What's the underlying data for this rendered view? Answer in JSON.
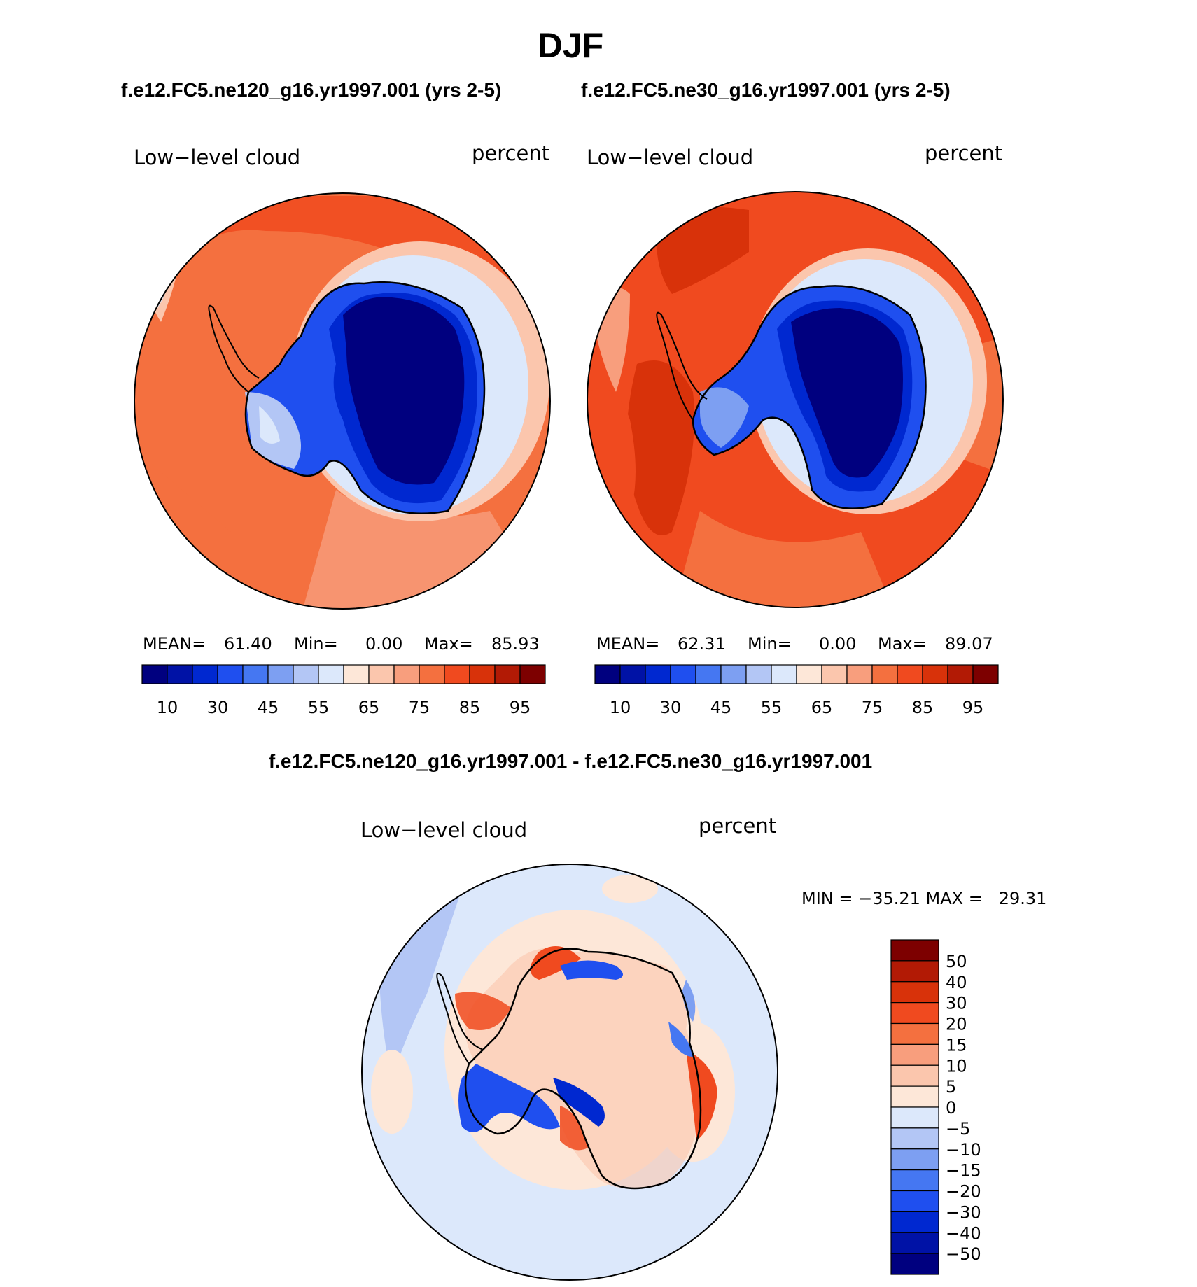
{
  "chart_data": {
    "type": "heatmap",
    "title": "DJF",
    "panels": [
      {
        "case_title": "f.e12.FC5.ne120_g16.yr1997.001 (yrs 2-5)",
        "variable": "Low−level cloud",
        "units": "percent",
        "mean_label": "MEAN=",
        "mean": "61.40",
        "min_label": "Min=",
        "min": "0.00",
        "max_label": "Max=",
        "max": "85.93",
        "colorbar_colors": [
          "#00007f",
          "#0012a6",
          "#0028d0",
          "#1f4fef",
          "#4577f2",
          "#7d9ff2",
          "#b3c6f5",
          "#dce8fb",
          "#fde7d8",
          "#fbc6ad",
          "#f89e7d",
          "#f4703f",
          "#f04a1f",
          "#d8320a",
          "#b21a05",
          "#7d0000"
        ],
        "colorbar_ticks": [
          "10",
          "30",
          "45",
          "55",
          "65",
          "75",
          "85",
          "95"
        ]
      },
      {
        "case_title": "f.e12.FC5.ne30_g16.yr1997.001 (yrs 2-5)",
        "variable": "Low−level cloud",
        "units": "percent",
        "mean_label": "MEAN=",
        "mean": "62.31",
        "min_label": "Min=",
        "min": "0.00",
        "max_label": "Max=",
        "max": "89.07",
        "colorbar_colors": [
          "#00007f",
          "#0012a6",
          "#0028d0",
          "#1f4fef",
          "#4577f2",
          "#7d9ff2",
          "#b3c6f5",
          "#dce8fb",
          "#fde7d8",
          "#fbc6ad",
          "#f89e7d",
          "#f4703f",
          "#f04a1f",
          "#d8320a",
          "#b21a05",
          "#7d0000"
        ],
        "colorbar_ticks": [
          "10",
          "30",
          "45",
          "55",
          "65",
          "75",
          "85",
          "95"
        ]
      },
      {
        "case_title": "f.e12.FC5.ne120_g16.yr1997.001 - f.e12.FC5.ne30_g16.yr1997.001",
        "variable": "Low−level cloud",
        "units": "percent",
        "minmax_text": "MIN = −35.21 MAX =   29.31",
        "colorbar_colors_top_to_bottom": [
          "#7d0000",
          "#b21a05",
          "#d8320a",
          "#f04a1f",
          "#f4703f",
          "#f89e7d",
          "#fbc6ad",
          "#fde7d8",
          "#dce8fb",
          "#b3c6f5",
          "#7d9ff2",
          "#4577f2",
          "#1f4fef",
          "#0028d0",
          "#0012a6",
          "#00007f"
        ],
        "colorbar_ticks": [
          "50",
          "40",
          "30",
          "20",
          "15",
          "10",
          "5",
          "0",
          "−5",
          "−10",
          "−15",
          "−20",
          "−30",
          "−40",
          "−50"
        ]
      }
    ]
  },
  "colors": {
    "map_ocean_high": "#f04a1f",
    "map_ocean_mid": "#f4703f",
    "map_ice_low": "#00007f",
    "map_ice_mid": "#0028d0",
    "diff_background": "#dce8fb",
    "diff_positive": "#fde7d8",
    "coast": "#000000"
  }
}
